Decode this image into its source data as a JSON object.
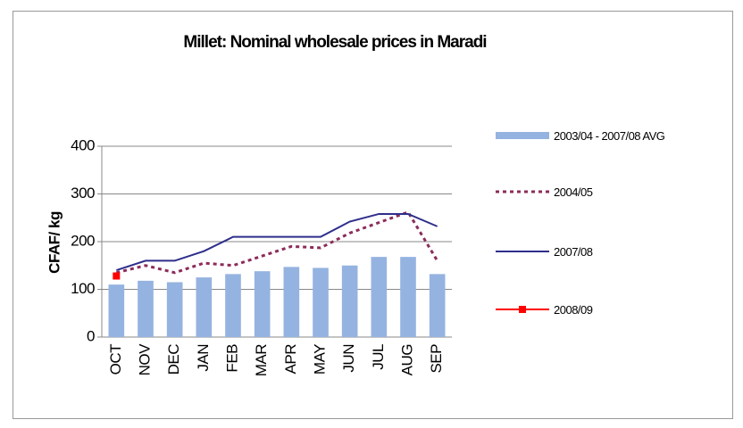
{
  "chart_data": {
    "type": "bar-line",
    "title": "Millet: Nominal wholesale prices in Maradi",
    "y_label": "CFAF/ kg",
    "categories": [
      "OCT",
      "NOV",
      "DEC",
      "JAN",
      "FEB",
      "MAR",
      "APR",
      "MAY",
      "JUN",
      "JUL",
      "AUG",
      "SEP"
    ],
    "ylim": [
      0,
      400
    ],
    "yticks": [
      0,
      100,
      200,
      300,
      400
    ],
    "grid": true,
    "series": [
      {
        "name": "2003/04 - 2007/08 AVG",
        "kind": "bar",
        "color": "#95b3e0",
        "values": [
          110,
          118,
          115,
          125,
          132,
          138,
          147,
          145,
          150,
          168,
          168,
          132
        ]
      },
      {
        "name": "2004/05",
        "kind": "dotted-line",
        "color": "#8b2c5a",
        "values": [
          135,
          150,
          135,
          155,
          150,
          170,
          190,
          187,
          218,
          240,
          262,
          160
        ]
      },
      {
        "name": "2007/08",
        "kind": "line",
        "color": "#2e2e8c",
        "values": [
          140,
          160,
          160,
          180,
          210,
          210,
          210,
          210,
          242,
          258,
          258,
          232
        ]
      },
      {
        "name": "2008/09",
        "kind": "marker-line",
        "color": "#ff0000",
        "values": [
          128,
          null,
          null,
          null,
          null,
          null,
          null,
          null,
          null,
          null,
          null,
          null
        ]
      }
    ]
  }
}
